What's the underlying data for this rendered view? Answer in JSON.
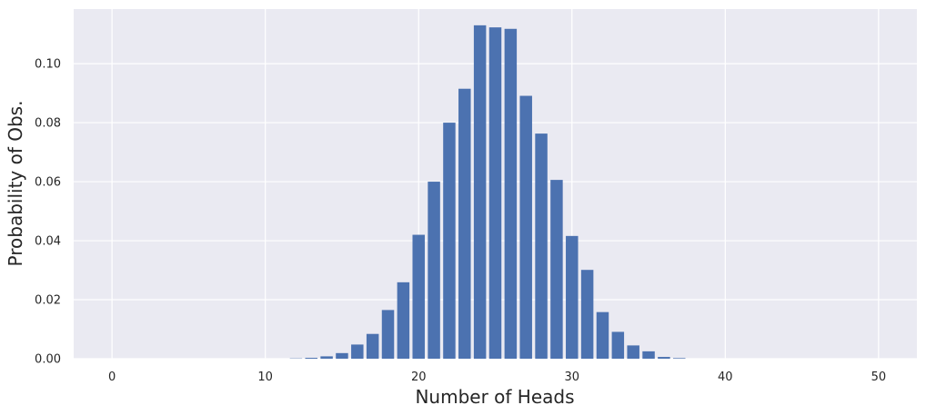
{
  "chart_data": {
    "type": "bar",
    "xlabel": "Number of Heads",
    "ylabel": "Probability of Obs.",
    "xlim": [
      -2.5,
      52.5
    ],
    "ylim": [
      0,
      0.1185
    ],
    "xticks": [
      0,
      10,
      20,
      30,
      40,
      50
    ],
    "xtick_labels": [
      "0",
      "10",
      "20",
      "30",
      "40",
      "50"
    ],
    "yticks": [
      0,
      0.02,
      0.04,
      0.06,
      0.08,
      0.1
    ],
    "ytick_labels": [
      "0.00",
      "0.02",
      "0.04",
      "0.06",
      "0.08",
      "0.10"
    ],
    "grid": true,
    "bar_color": "#4c72b0",
    "background_color": "#eaeaf2",
    "grid_color": "#ffffff",
    "x": [
      12,
      13,
      14,
      15,
      16,
      17,
      18,
      19,
      20,
      21,
      22,
      23,
      24,
      25,
      26,
      27,
      28,
      29,
      30,
      31,
      32,
      33,
      34,
      35,
      36,
      37
    ],
    "values": [
      0.0001,
      0.0003,
      0.0008,
      0.0019,
      0.0048,
      0.0084,
      0.0165,
      0.0259,
      0.042,
      0.06,
      0.08,
      0.0915,
      0.113,
      0.1123,
      0.1118,
      0.0891,
      0.0763,
      0.0606,
      0.0416,
      0.0301,
      0.0158,
      0.0091,
      0.0045,
      0.0025,
      0.0006,
      0.0002
    ]
  }
}
